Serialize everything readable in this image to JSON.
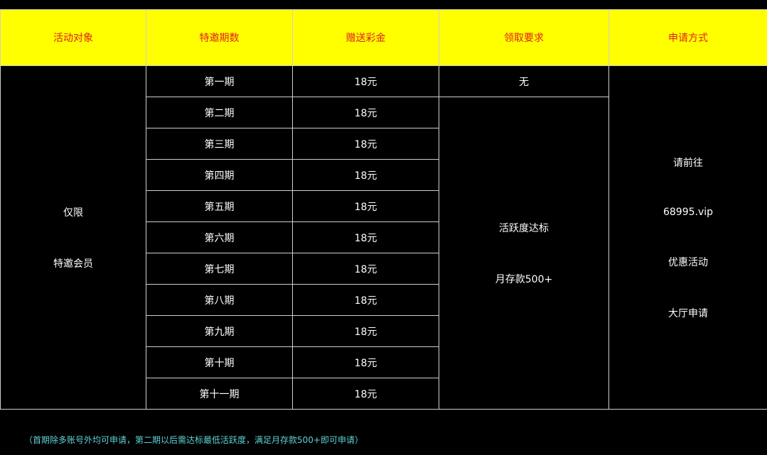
{
  "headers": [
    "活动对象",
    "特邀期数",
    "赠送彩金",
    "领取要求",
    "申请方式"
  ],
  "target": [
    "仅限",
    "特邀会员"
  ],
  "rows": [
    {
      "period": "第一期",
      "bonus": "18元"
    },
    {
      "period": "第二期",
      "bonus": "18元"
    },
    {
      "period": "第三期",
      "bonus": "18元"
    },
    {
      "period": "第四期",
      "bonus": "18元"
    },
    {
      "period": "第五期",
      "bonus": "18元"
    },
    {
      "period": "第六期",
      "bonus": "18元"
    },
    {
      "period": "第七期",
      "bonus": "18元"
    },
    {
      "period": "第八期",
      "bonus": "18元"
    },
    {
      "period": "第九期",
      "bonus": "18元"
    },
    {
      "period": "第十期",
      "bonus": "18元"
    },
    {
      "period": "第十一期",
      "bonus": "18元"
    }
  ],
  "requirement_first": "无",
  "requirement_rest": [
    "活跃度达标",
    "月存款500+"
  ],
  "apply": [
    "请前往",
    "68995.vip",
    "优惠活动",
    "大厅申请"
  ],
  "note": "（首期除多账号外均可申请，第二期以后需达标最低活跃度，满足月存款500+即可申请）",
  "colors": {
    "header_bg": "#ffff00",
    "header_text": "#e0201a",
    "note_text": "#5fd3d8"
  }
}
